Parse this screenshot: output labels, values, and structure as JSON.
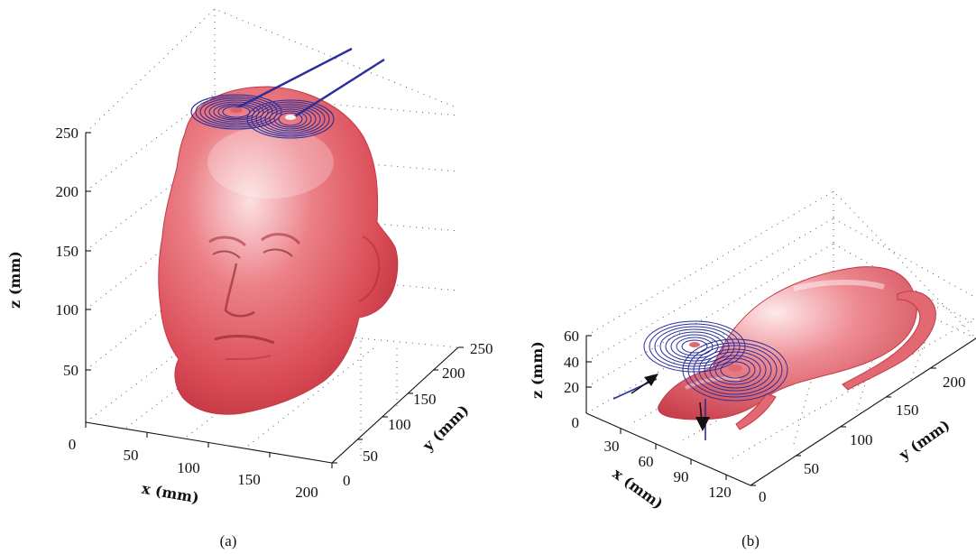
{
  "chart_data": [
    {
      "type": "3d-surface",
      "panel": "(a)",
      "subject": "human head model with figure-of-eight coil",
      "xlabel": "x (mm)",
      "ylabel": "y (mm)",
      "zlabel": "z (mm)",
      "x_ticks": [
        "0",
        "50",
        "100",
        "150",
        "200"
      ],
      "y_ticks": [
        "0",
        "50",
        "100",
        "150",
        "200",
        "250"
      ],
      "z_ticks": [
        "50",
        "100",
        "150",
        "200",
        "250"
      ],
      "xlim": [
        0,
        200
      ],
      "ylim": [
        0,
        250
      ],
      "zlim": [
        0,
        270
      ],
      "grid": true,
      "colors": {
        "surface": "#e05a62",
        "coil": "#2a2f9a"
      }
    },
    {
      "type": "3d-surface",
      "panel": "(b)",
      "subject": "rat model with figure-of-eight coil",
      "xlabel": "x (mm)",
      "ylabel": "y (mm)",
      "zlabel": "z (mm)",
      "x_ticks": [
        "30",
        "60",
        "90",
        "120"
      ],
      "y_ticks": [
        "0",
        "50",
        "100",
        "150",
        "200"
      ],
      "z_ticks": [
        "20",
        "40",
        "60"
      ],
      "xlim": [
        0,
        140
      ],
      "ylim": [
        0,
        250
      ],
      "zlim": [
        0,
        70
      ],
      "grid": true,
      "colors": {
        "surface": "#e05a62",
        "coil": "#2a2f9a",
        "arrow": "#111111"
      }
    }
  ]
}
